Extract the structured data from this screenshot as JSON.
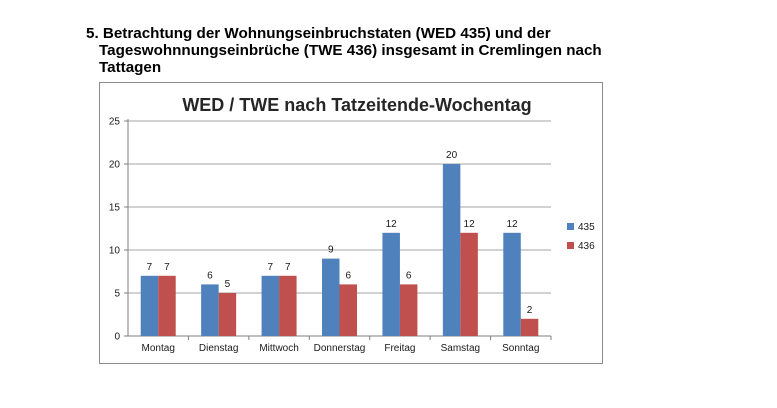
{
  "document": {
    "heading_lines": [
      "5. Betrachtung der Wohnungseinbruchstaten (WED 435) und der",
      "Tageswohnnungseinbrüche (TWE 436) insgesamt in Cremlingen nach",
      "Tattagen"
    ]
  },
  "chart_data": {
    "type": "bar",
    "title": "WED / TWE nach Tatzeitende-Wochentag",
    "xlabel": "",
    "ylabel": "",
    "categories": [
      "Montag",
      "Dienstag",
      "Mittwoch",
      "Donnerstag",
      "Freitag",
      "Samstag",
      "Sonntag"
    ],
    "series": [
      {
        "name": "435",
        "values": [
          7,
          6,
          7,
          9,
          12,
          20,
          12
        ],
        "color": "#4f81bd"
      },
      {
        "name": "436",
        "values": [
          7,
          5,
          7,
          6,
          6,
          12,
          2
        ],
        "color": "#c0504d"
      }
    ],
    "ylim": [
      0,
      25
    ],
    "yticks": [
      0,
      5,
      10,
      15,
      20,
      25
    ],
    "grid": true,
    "legend_position": "right",
    "data_labels": true
  }
}
